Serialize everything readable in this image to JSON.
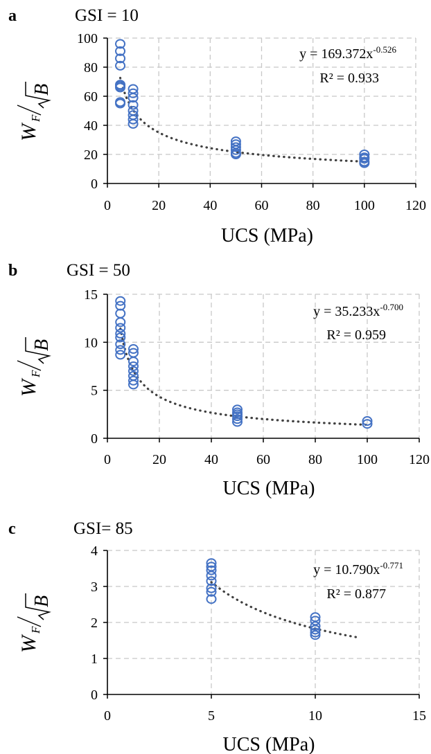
{
  "chart_data": [
    {
      "type": "scatter",
      "panel_label": "a",
      "title": "GSI = 10",
      "xlabel": "UCS (MPa)",
      "ylabel_main": "W",
      "ylabel_sub": "F",
      "ylabel_den": "B",
      "xlim": [
        0,
        120
      ],
      "ylim": [
        0,
        100
      ],
      "xticks": [
        "0",
        "20",
        "40",
        "60",
        "80",
        "100",
        "120"
      ],
      "yticks": [
        "0",
        "20",
        "40",
        "60",
        "80",
        "100"
      ],
      "grid": true,
      "equation": "y = 169.372x",
      "exponent": "-0.526",
      "r2": "R² = 0.933",
      "trend": {
        "a": 169.372,
        "b": -0.526,
        "x_from": 5,
        "x_to": 100
      },
      "marker_color": "#4472C4",
      "trend_color": "#404040",
      "x": [
        5,
        5,
        5,
        5,
        5,
        5,
        5,
        5,
        5,
        10,
        10,
        10,
        10,
        10,
        10,
        10,
        10,
        50,
        50,
        50,
        50,
        50,
        50,
        100,
        100,
        100,
        100,
        100
      ],
      "y": [
        96,
        91,
        86,
        81,
        68,
        67,
        66,
        56,
        55,
        65,
        62,
        59,
        54,
        50,
        47,
        44,
        41,
        29,
        27,
        25,
        23,
        21,
        20,
        20,
        18,
        17,
        15,
        14
      ]
    },
    {
      "type": "scatter",
      "panel_label": "b",
      "title": "GSI = 50",
      "xlabel": "UCS (MPa)",
      "ylabel_main": "W",
      "ylabel_sub": "F",
      "ylabel_den": "B",
      "xlim": [
        0,
        120
      ],
      "ylim": [
        0,
        15
      ],
      "xticks": [
        "0",
        "20",
        "40",
        "60",
        "80",
        "100",
        "120"
      ],
      "yticks": [
        "0",
        "5",
        "10",
        "15"
      ],
      "grid": true,
      "equation": "y = 35.233x",
      "exponent": "-0.700",
      "r2": "R² = 0.959",
      "trend": {
        "a": 35.233,
        "b": -0.7,
        "x_from": 5,
        "x_to": 100
      },
      "marker_color": "#4472C4",
      "trend_color": "#404040",
      "x": [
        5,
        5,
        5,
        5,
        5,
        5,
        5,
        5,
        5,
        5,
        10,
        10,
        10,
        10,
        10,
        10,
        10,
        10,
        50,
        50,
        50,
        50,
        50,
        50,
        100,
        100
      ],
      "y": [
        14.3,
        13.8,
        13.0,
        12.1,
        11.5,
        10.9,
        10.5,
        9.8,
        9.2,
        8.7,
        9.3,
        8.9,
        8.0,
        7.5,
        7.0,
        6.5,
        6.0,
        5.6,
        3.0,
        2.7,
        2.5,
        2.3,
        2.0,
        1.7,
        1.8,
        1.5
      ]
    },
    {
      "type": "scatter",
      "panel_label": "c",
      "title": "GSI= 85",
      "xlabel": "UCS (MPa)",
      "ylabel_main": "W",
      "ylabel_sub": "F",
      "ylabel_den": "B",
      "xlim": [
        0,
        15
      ],
      "ylim": [
        0,
        4
      ],
      "xticks": [
        "0",
        "5",
        "10",
        "15"
      ],
      "yticks": [
        "0",
        "1",
        "2",
        "3",
        "4"
      ],
      "grid": true,
      "equation": "y = 10.790x",
      "exponent": "-0.771",
      "r2": "R² = 0.877",
      "trend": {
        "a": 10.79,
        "b": -0.771,
        "x_from": 5,
        "x_to": 12
      },
      "marker_color": "#4472C4",
      "trend_color": "#404040",
      "x": [
        5,
        5,
        5,
        5,
        5,
        5,
        5,
        5,
        10,
        10,
        10,
        10,
        10,
        10
      ],
      "y": [
        3.65,
        3.55,
        3.45,
        3.3,
        3.15,
        2.95,
        2.85,
        2.65,
        2.15,
        2.05,
        1.9,
        1.8,
        1.72,
        1.65
      ]
    }
  ]
}
